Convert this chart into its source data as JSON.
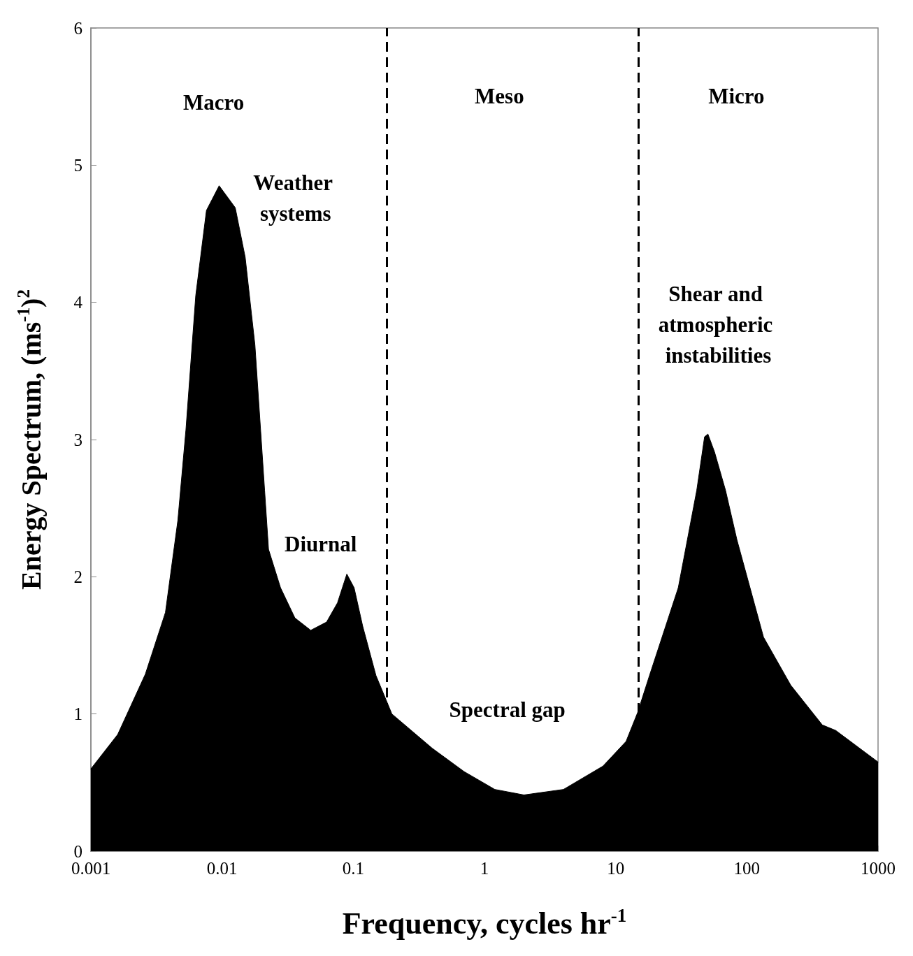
{
  "chart_data": {
    "type": "area",
    "xlabel": "Frequency, cycles hr$^{-1}$",
    "ylabel": "Energy Spectrum, (ms$^{-1}$)$^{2}$",
    "x": [
      0.001,
      0.0016,
      0.0026,
      0.0037,
      0.0046,
      0.0053,
      0.0063,
      0.0076,
      0.0095,
      0.0126,
      0.015,
      0.0178,
      0.0211,
      0.0226,
      0.0279,
      0.0359,
      0.0474,
      0.0626,
      0.0758,
      0.0893,
      0.1015,
      0.118,
      0.149,
      0.197,
      0.4,
      0.7,
      1.2,
      2,
      4,
      8,
      12,
      14.7,
      18.1,
      30,
      41.5,
      47.6,
      50.5,
      56.7,
      68.8,
      84,
      134,
      216,
      376,
      476,
      1000
    ],
    "series": [
      {
        "color": "#000000",
        "values": [
          0.6,
          0.85,
          1.29,
          1.74,
          2.41,
          3.07,
          4.05,
          4.67,
          4.85,
          4.69,
          4.33,
          3.69,
          2.63,
          2.2,
          1.92,
          1.7,
          1.61,
          1.67,
          1.81,
          2.02,
          1.92,
          1.64,
          1.28,
          1.0,
          0.75,
          0.58,
          0.45,
          0.41,
          0.45,
          0.62,
          0.8,
          1.01,
          1.28,
          1.92,
          2.63,
          3.02,
          3.04,
          2.91,
          2.63,
          2.27,
          1.56,
          1.21,
          0.92,
          0.88,
          0.65
        ]
      }
    ],
    "log": "x",
    "xlim": [
      0.001,
      1000
    ],
    "xticks": [
      0.001,
      0.01,
      0.1,
      1,
      10,
      100,
      1000
    ],
    "ylim": [
      0,
      6
    ],
    "yticks": [
      0,
      1,
      2,
      3,
      4,
      5,
      6
    ],
    "ref_lines": [
      {
        "axis": "x",
        "value": 0.18,
        "color": "#000000",
        "line_style": "dashed"
      },
      {
        "axis": "x",
        "value": 15,
        "color": "#000000",
        "line_style": "dashed"
      }
    ],
    "annotations": [
      "Macro",
      "Meso",
      "Micro",
      "Weather systems",
      "Diurnal",
      "Spectral gap",
      "Shear and atmospheric instabilities"
    ]
  }
}
